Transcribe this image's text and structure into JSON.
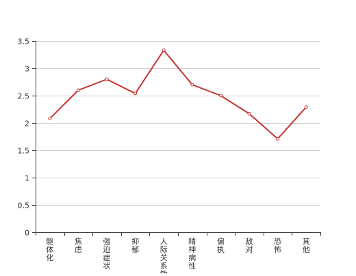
{
  "chart_data": {
    "type": "line",
    "title": "",
    "xlabel": "",
    "ylabel": "",
    "categories": [
      "躯体化",
      "焦虑",
      "强迫症状",
      "抑郁",
      "人际关系敏感",
      "精神病性",
      "偏执",
      "敌对",
      "恐怖",
      "其他"
    ],
    "series": [
      {
        "values": [
          2.08,
          2.6,
          2.8,
          2.54,
          3.33,
          2.7,
          2.5,
          2.17,
          1.71,
          2.29
        ]
      }
    ],
    "ylim": [
      0,
      3.5
    ],
    "yticks": [
      "0",
      "0.5",
      "1",
      "1.5",
      "2",
      "2.5",
      "3",
      "3.5"
    ],
    "grid": true,
    "legend": "none",
    "colors": {
      "line": "#c23531",
      "axis": "#333333",
      "grid": "#cccccc",
      "text": "#333333"
    }
  }
}
